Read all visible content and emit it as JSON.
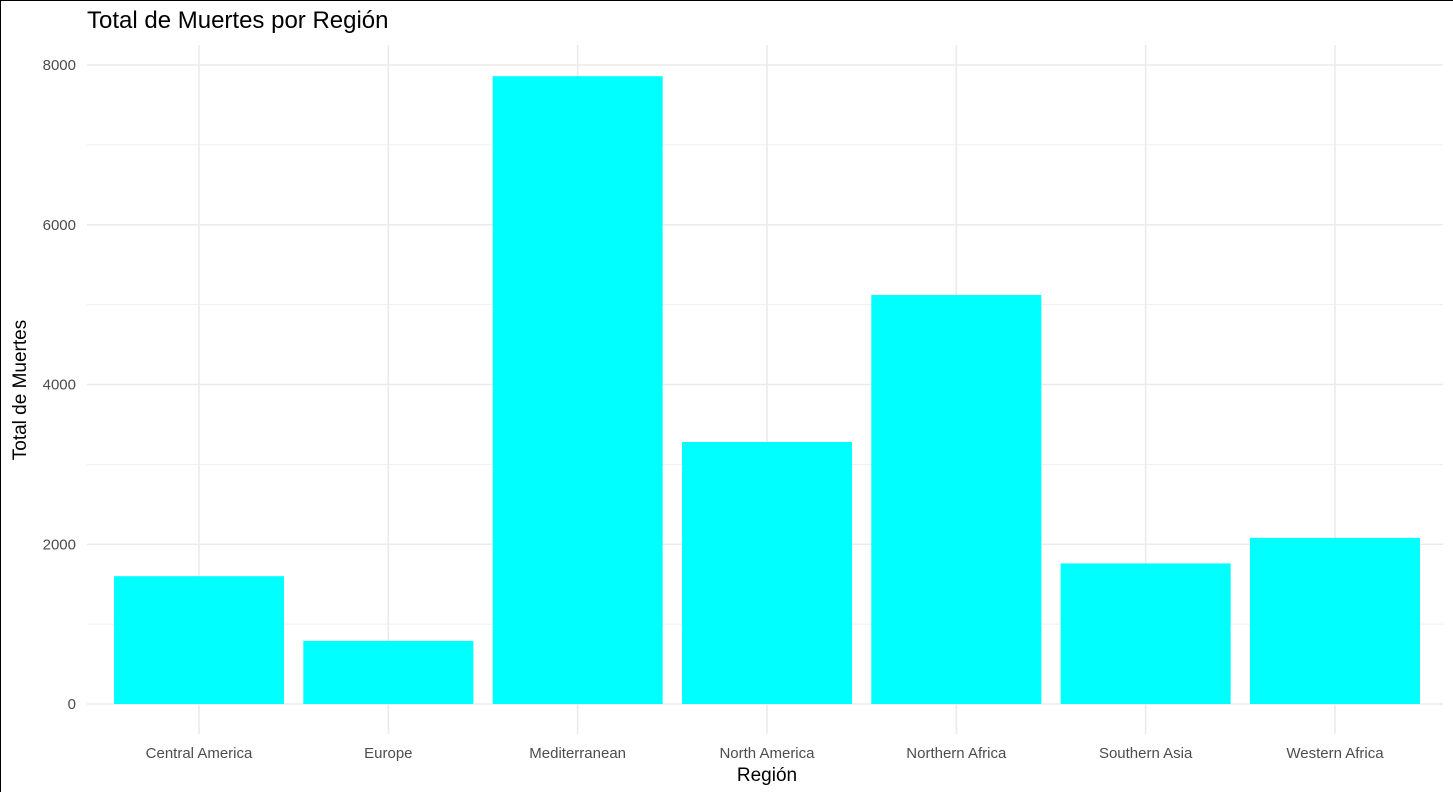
{
  "chart_data": {
    "type": "bar",
    "title": "Total de Muertes por Región",
    "xlabel": "Región",
    "ylabel": "Total de Muertes",
    "categories": [
      "Central America",
      "Europe",
      "Mediterranean",
      "North America",
      "Northern Africa",
      "Southern Asia",
      "Western Africa"
    ],
    "values": [
      1600,
      790,
      7860,
      3280,
      5120,
      1760,
      2080
    ],
    "ylim": [
      0,
      8000
    ],
    "yticks": [
      0,
      2000,
      4000,
      6000,
      8000
    ],
    "grid": true,
    "legend": "none",
    "bar_color": "#00FFFF",
    "grid_color": "#ebebeb"
  }
}
